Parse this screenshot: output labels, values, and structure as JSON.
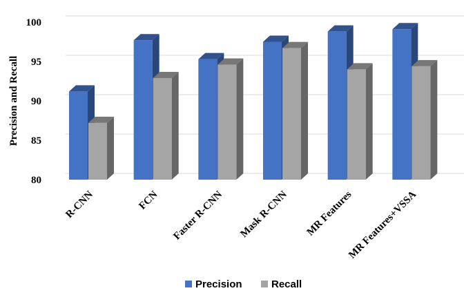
{
  "chart_data": {
    "type": "bar",
    "style": "3d-clustered-column",
    "categories": [
      "R-CNN",
      "FCN",
      "Faster R-CNN",
      "Mask R-CNN",
      "MR Features",
      "MR Features+VSSA"
    ],
    "series": [
      {
        "name": "Precision",
        "color": "#4472C4",
        "values": [
          91.2,
          97.7,
          95.3,
          97.5,
          98.8,
          99.1
        ]
      },
      {
        "name": "Recall",
        "color": "#A5A5A5",
        "values": [
          87.2,
          92.9,
          94.6,
          96.7,
          94.0,
          94.4
        ]
      }
    ],
    "ylabel": "Precision and Recall",
    "xlabel": "",
    "ylim": [
      80,
      100
    ],
    "yticks": [
      80,
      85,
      90,
      95,
      100
    ],
    "grid": true,
    "legend": "bottom"
  }
}
